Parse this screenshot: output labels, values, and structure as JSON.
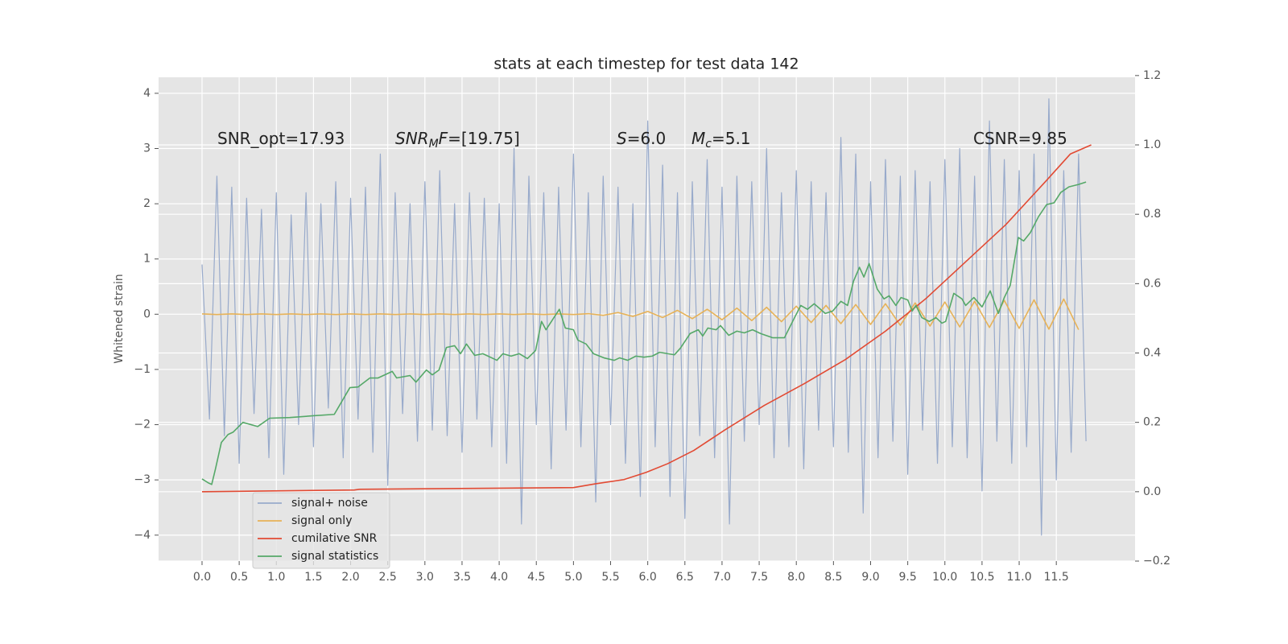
{
  "chart_data": {
    "type": "line",
    "title": "stats at each timestep for test data 142",
    "ylabel": "Whitened strain",
    "grid": true,
    "legend": "lower left",
    "xlim": [
      -0.585,
      12.56
    ],
    "ylim": [
      -4.47,
      4.29
    ],
    "y2lim": [
      -0.2,
      1.195
    ],
    "xticks": [
      {
        "value": 0,
        "label": "0.0"
      },
      0.5,
      {
        "value": 1,
        "label": "1.0"
      },
      1.5,
      {
        "value": 2,
        "label": "2.0"
      },
      2.5,
      {
        "value": 3,
        "label": "3.0"
      },
      3.5,
      {
        "value": 4,
        "label": "4.0"
      },
      4.5,
      {
        "value": 5,
        "label": "5.0"
      },
      5.5,
      {
        "value": 6,
        "label": "6.0"
      },
      6.5,
      {
        "value": 7,
        "label": "7.0"
      },
      7.5,
      {
        "value": 8,
        "label": "8.0"
      },
      8.5,
      {
        "value": 9,
        "label": "9.0"
      },
      9.5,
      {
        "value": 10,
        "label": "10.0"
      },
      10.5,
      {
        "value": 11,
        "label": "11.0"
      },
      11.5
    ],
    "yticks": [
      {
        "value": -4,
        "label": "−4"
      },
      {
        "value": -3,
        "label": "−3"
      },
      {
        "value": -2,
        "label": "−2"
      },
      {
        "value": -1,
        "label": "−1"
      },
      0,
      1,
      2,
      3,
      4
    ],
    "y2ticks": [
      {
        "value": -0.2,
        "label": "−0.2"
      },
      {
        "value": 0,
        "label": "0.0"
      },
      0.2,
      0.4,
      0.6,
      0.8,
      {
        "value": 1,
        "label": "1.0"
      },
      1.2
    ],
    "annotations": [
      {
        "parts": [
          {
            "text": "SNR_opt=17.93"
          }
        ]
      },
      {
        "parts": [
          {
            "text": "SNR",
            "style": "italic"
          },
          {
            "text": "M",
            "style": "italic-sub"
          },
          {
            "text": "F",
            "style": "italic"
          },
          {
            "text": "=[19.75]"
          }
        ]
      },
      {
        "parts": [
          {
            "text": "S",
            "style": "italic"
          },
          {
            "text": "=6.0"
          }
        ]
      },
      {
        "parts": [
          {
            "text": "M",
            "style": "italic"
          },
          {
            "text": "c",
            "style": "italic-sub"
          },
          {
            "text": "=5.1"
          }
        ]
      },
      {
        "parts": [
          {
            "text": "CSNR=9.85"
          }
        ]
      }
    ],
    "series": [
      {
        "name": "signal+ noise",
        "color": "#98aacb",
        "axis": "y",
        "x": [
          0,
          0.1,
          0.2,
          0.3,
          0.4,
          0.5,
          0.6,
          0.7,
          0.8,
          0.9,
          1,
          1.1,
          1.2,
          1.3,
          1.4,
          1.5,
          1.6,
          1.7,
          1.8,
          1.9,
          2,
          2.1,
          2.2,
          2.3,
          2.4,
          2.5,
          2.6,
          2.7,
          2.8,
          2.9,
          3,
          3.1,
          3.2,
          3.3,
          3.4,
          3.5,
          3.6,
          3.7,
          3.8,
          3.9,
          4,
          4.1,
          4.2,
          4.3,
          4.4,
          4.5,
          4.6,
          4.7,
          4.8,
          4.9,
          5,
          5.1,
          5.2,
          5.3,
          5.4,
          5.5,
          5.6,
          5.7,
          5.8,
          5.9,
          6,
          6.1,
          6.2,
          6.3,
          6.4,
          6.5,
          6.6,
          6.7,
          6.8,
          6.9,
          7,
          7.1,
          7.2,
          7.3,
          7.4,
          7.5,
          7.6,
          7.7,
          7.8,
          7.9,
          8,
          8.1,
          8.2,
          8.3,
          8.4,
          8.5,
          8.6,
          8.7,
          8.8,
          8.9,
          9,
          9.1,
          9.2,
          9.3,
          9.4,
          9.5,
          9.6,
          9.7,
          9.8,
          9.9,
          10,
          10.1,
          10.2,
          10.3,
          10.4,
          10.5,
          10.6,
          10.7,
          10.8,
          10.9,
          11,
          11.1,
          11.2,
          11.3,
          11.4,
          11.5,
          11.6,
          11.7,
          11.8,
          11.9
        ],
        "values": [
          0.9,
          -1.9,
          2.5,
          -2.2,
          2.3,
          -2.7,
          2.1,
          -1.8,
          1.9,
          -2.6,
          2.2,
          -2.9,
          1.8,
          -2.0,
          2.2,
          -2.4,
          2.0,
          -1.7,
          2.4,
          -2.6,
          2.1,
          -1.9,
          2.3,
          -2.5,
          2.9,
          -3.1,
          2.2,
          -1.8,
          2.0,
          -2.3,
          2.4,
          -2.1,
          2.6,
          -2.2,
          2.0,
          -2.5,
          2.2,
          -1.9,
          2.1,
          -2.4,
          2.0,
          -2.7,
          3.0,
          -3.8,
          2.5,
          -2.0,
          2.2,
          -2.8,
          2.3,
          -2.1,
          2.9,
          -2.4,
          2.2,
          -3.4,
          2.5,
          -2.0,
          2.3,
          -2.7,
          2.0,
          -3.3,
          3.5,
          -2.4,
          2.7,
          -3.3,
          2.2,
          -3.7,
          2.4,
          -2.2,
          2.8,
          -2.6,
          2.3,
          -3.8,
          2.5,
          -2.3,
          2.4,
          -2.0,
          3.0,
          -2.6,
          2.2,
          -2.4,
          2.6,
          -2.8,
          2.4,
          -2.1,
          2.2,
          -2.4,
          3.2,
          -2.5,
          2.9,
          -3.6,
          2.4,
          -2.6,
          2.8,
          -2.3,
          2.5,
          -2.9,
          2.6,
          -2.1,
          2.4,
          -2.7,
          2.8,
          -2.4,
          3.0,
          -2.6,
          2.5,
          -3.2,
          3.5,
          -2.3,
          2.8,
          -2.7,
          2.6,
          -2.4,
          2.9,
          -4.0,
          3.9,
          -3.0,
          2.6,
          -2.5,
          2.9,
          -2.3
        ]
      },
      {
        "name": "signal only",
        "color": "#e7b257",
        "axis": "y",
        "x": [
          0,
          0.2,
          0.4,
          0.6,
          0.8,
          1,
          1.2,
          1.4,
          1.6,
          1.8,
          2,
          2.2,
          2.4,
          2.6,
          2.8,
          3,
          3.2,
          3.4,
          3.6,
          3.8,
          4,
          4.2,
          4.4,
          4.6,
          4.8,
          5,
          5.2,
          5.4,
          5.6,
          5.8,
          6,
          6.2,
          6.4,
          6.6,
          6.8,
          7,
          7.2,
          7.4,
          7.6,
          7.8,
          8,
          8.2,
          8.4,
          8.6,
          8.8,
          9,
          9.2,
          9.4,
          9.6,
          9.8,
          10,
          10.2,
          10.4,
          10.6,
          10.8,
          11,
          11.2,
          11.4,
          11.6,
          11.8
        ],
        "values": [
          0.005,
          -0.005,
          0.005,
          -0.005,
          0.005,
          -0.005,
          0.005,
          -0.005,
          0.005,
          -0.005,
          0.005,
          -0.005,
          0.005,
          -0.005,
          0.005,
          -0.005,
          0.005,
          -0.005,
          0.005,
          -0.005,
          0.005,
          -0.005,
          0.005,
          -0.005,
          0.005,
          -0.005,
          0.01,
          -0.02,
          0.03,
          -0.04,
          0.05,
          -0.06,
          0.07,
          -0.08,
          0.09,
          -0.1,
          0.11,
          -0.115,
          0.125,
          -0.135,
          0.145,
          -0.15,
          0.16,
          -0.17,
          0.175,
          -0.185,
          0.19,
          -0.2,
          0.205,
          -0.215,
          0.22,
          -0.23,
          0.235,
          -0.24,
          0.25,
          -0.255,
          0.26,
          -0.27,
          0.275,
          -0.28
        ]
      },
      {
        "name": "cumilative SNR",
        "color": "#e24a33",
        "axis": "y2",
        "x": [
          0,
          2.05,
          2.12,
          5.0,
          5.3,
          5.68,
          5.98,
          6.27,
          6.62,
          7.03,
          7.57,
          8.11,
          8.66,
          9.2,
          9.74,
          10.28,
          10.82,
          11.37,
          11.69,
          11.97
        ],
        "values": [
          0,
          0.005,
          0.007,
          0.012,
          0.023,
          0.035,
          0.056,
          0.081,
          0.119,
          0.177,
          0.249,
          0.312,
          0.381,
          0.463,
          0.556,
          0.663,
          0.77,
          0.898,
          0.974,
          1.0
        ]
      },
      {
        "name": "signal statistics",
        "color": "#55a868",
        "axis": "y2",
        "x": [
          0,
          0.08,
          0.13,
          0.18,
          0.26,
          0.35,
          0.42,
          0.55,
          0.75,
          0.91,
          1.18,
          1.5,
          1.78,
          1.99,
          2.1,
          2.26,
          2.37,
          2.56,
          2.62,
          2.8,
          2.88,
          3.02,
          3.1,
          3.19,
          3.29,
          3.4,
          3.48,
          3.56,
          3.67,
          3.78,
          3.97,
          4.05,
          4.16,
          4.27,
          4.38,
          4.49,
          4.57,
          4.63,
          4.81,
          4.89,
          5.0,
          5.06,
          5.17,
          5.27,
          5.41,
          5.55,
          5.62,
          5.73,
          5.84,
          5.95,
          6.06,
          6.16,
          6.27,
          6.36,
          6.44,
          6.57,
          6.68,
          6.74,
          6.81,
          6.92,
          6.98,
          7.09,
          7.2,
          7.3,
          7.41,
          7.52,
          7.68,
          7.84,
          7.95,
          8.06,
          8.15,
          8.24,
          8.39,
          8.49,
          8.6,
          8.69,
          8.77,
          8.85,
          8.91,
          8.98,
          9.09,
          9.18,
          9.25,
          9.34,
          9.41,
          9.5,
          9.56,
          9.61,
          9.69,
          9.79,
          9.88,
          9.96,
          10.01,
          10.12,
          10.23,
          10.28,
          10.39,
          10.5,
          10.61,
          10.72,
          10.8,
          10.88,
          10.99,
          11.06,
          11.15,
          11.26,
          11.37,
          11.47,
          11.56,
          11.67,
          11.8,
          11.9
        ],
        "values": [
          0.037,
          0.026,
          0.021,
          0.065,
          0.142,
          0.165,
          0.172,
          0.2,
          0.188,
          0.212,
          0.214,
          0.219,
          0.223,
          0.3,
          0.302,
          0.328,
          0.328,
          0.347,
          0.328,
          0.335,
          0.316,
          0.351,
          0.337,
          0.351,
          0.416,
          0.421,
          0.398,
          0.426,
          0.393,
          0.398,
          0.379,
          0.398,
          0.391,
          0.398,
          0.384,
          0.407,
          0.491,
          0.467,
          0.526,
          0.472,
          0.467,
          0.437,
          0.426,
          0.398,
          0.386,
          0.379,
          0.386,
          0.379,
          0.391,
          0.388,
          0.391,
          0.402,
          0.398,
          0.395,
          0.414,
          0.456,
          0.467,
          0.449,
          0.472,
          0.467,
          0.479,
          0.451,
          0.463,
          0.458,
          0.467,
          0.456,
          0.444,
          0.444,
          0.491,
          0.537,
          0.526,
          0.542,
          0.514,
          0.521,
          0.549,
          0.537,
          0.607,
          0.647,
          0.619,
          0.658,
          0.584,
          0.556,
          0.565,
          0.537,
          0.56,
          0.553,
          0.521,
          0.537,
          0.502,
          0.491,
          0.502,
          0.486,
          0.491,
          0.572,
          0.556,
          0.537,
          0.56,
          0.533,
          0.579,
          0.514,
          0.56,
          0.595,
          0.733,
          0.723,
          0.747,
          0.793,
          0.828,
          0.833,
          0.863,
          0.879,
          0.886,
          0.893
        ]
      }
    ]
  }
}
